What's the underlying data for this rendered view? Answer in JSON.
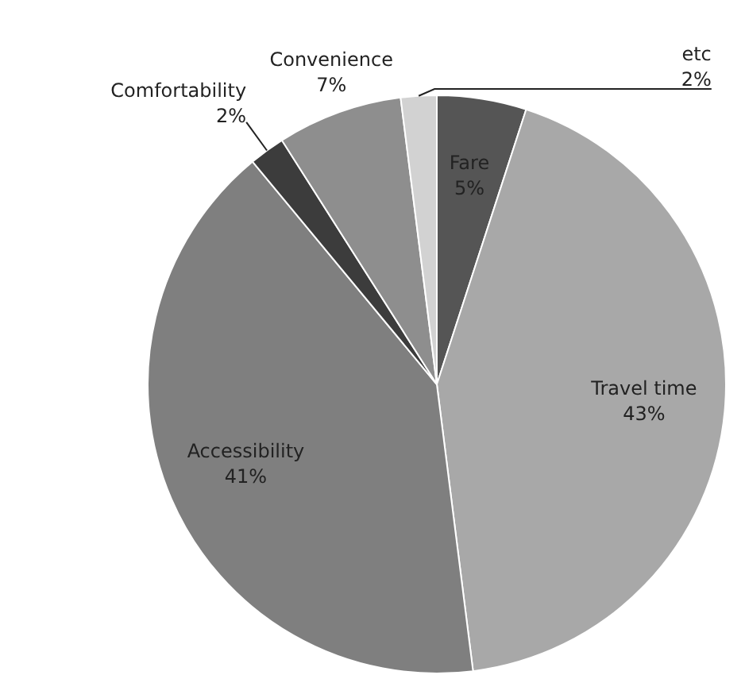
{
  "chart_data": {
    "type": "pie",
    "categories": [
      "Fare",
      "Travel time",
      "Accessibility",
      "Comfortability",
      "Convenience",
      "etc"
    ],
    "values": [
      5,
      43,
      41,
      2,
      7,
      2
    ],
    "colors": [
      "#555555",
      "#a8a8a8",
      "#7f7f7f",
      "#3c3c3c",
      "#8e8e8e",
      "#d2d2d2"
    ],
    "value_labels": [
      "5%",
      "43%",
      "41%",
      "2%",
      "7%",
      "2%"
    ],
    "legend": false
  }
}
